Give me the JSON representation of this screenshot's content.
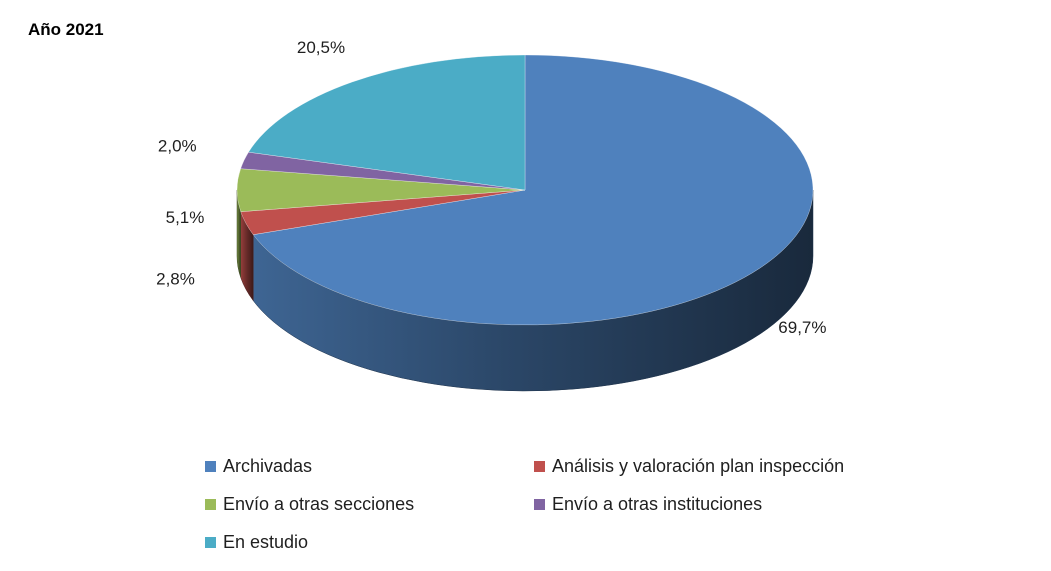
{
  "chart_data": {
    "type": "pie",
    "title": "Año 2021",
    "three_d": true,
    "legend_position": "bottom",
    "slices": [
      {
        "name": "Archivadas",
        "value": 69.7,
        "label": "69,7%",
        "color": "#4F81BD"
      },
      {
        "name": "Análisis y valoración plan inspección",
        "value": 2.8,
        "label": "2,8%",
        "color": "#C0504D"
      },
      {
        "name": "Envío a otras secciones",
        "value": 5.1,
        "label": "5,1%",
        "color": "#9BBB59"
      },
      {
        "name": "Envío a otras instituciones",
        "value": 2.0,
        "label": "2,0%",
        "color": "#8064A2"
      },
      {
        "name": "En estudio",
        "value": 20.5,
        "label": "20,5%",
        "color": "#4BACC6"
      }
    ]
  }
}
